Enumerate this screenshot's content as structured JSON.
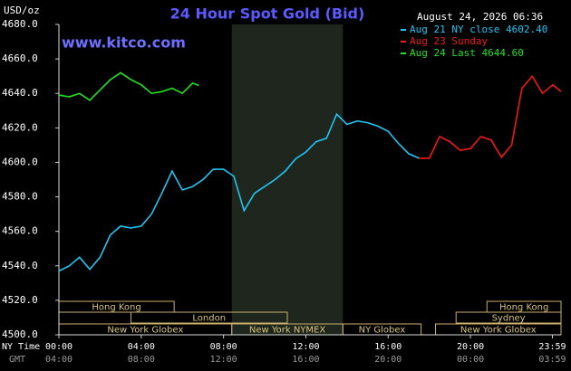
{
  "chart_data": {
    "type": "line",
    "title": "24 Hour Spot Gold (Bid)",
    "unit_label": "USD/oz",
    "watermark": "www.kitco.com",
    "timestamp": "August 24, 2026 06:36",
    "xlim": [
      0,
      24.4
    ],
    "ylim": [
      4500,
      4680
    ],
    "yticks": [
      {
        "value": 4500,
        "label": "4500.0"
      },
      {
        "value": 4520,
        "label": "4520.0"
      },
      {
        "value": 4540,
        "label": "4540.0"
      },
      {
        "value": 4560,
        "label": "4560.0"
      },
      {
        "value": 4580,
        "label": "4580.0"
      },
      {
        "value": 4600,
        "label": "4600.0"
      },
      {
        "value": 4620,
        "label": "4620.0"
      },
      {
        "value": 4640,
        "label": "4640.0"
      },
      {
        "value": 4660,
        "label": "4660.0"
      },
      {
        "value": 4680,
        "label": "4680.0"
      }
    ],
    "xticks": [
      {
        "value": 0,
        "label": "00:00"
      },
      {
        "value": 4,
        "label": "04:00"
      },
      {
        "value": 8,
        "label": "08:00"
      },
      {
        "value": 12,
        "label": "12:00"
      },
      {
        "value": 16,
        "label": "16:00"
      },
      {
        "value": 20,
        "label": "20:00"
      },
      {
        "value": 23.98,
        "label": "23:59"
      }
    ],
    "x_row_label": "NY Time",
    "x2_row_label": "GMT",
    "x2ticks": [
      "04:00",
      "08:00",
      "12:00",
      "16:00",
      "20:00",
      "00:00",
      "03:59"
    ],
    "series": [
      {
        "name": "Aug 21 NY close 4602.40",
        "color": "#22c4f2",
        "x": [
          0,
          0.5,
          1,
          1.5,
          2,
          2.5,
          3,
          3.5,
          4,
          4.5,
          5,
          5.5,
          6,
          6.5,
          7,
          7.5,
          8,
          8.5,
          9,
          9.5,
          10,
          10.5,
          11,
          11.5,
          12,
          12.5,
          13,
          13.5,
          14,
          14.5,
          15,
          15.5,
          16,
          16.5,
          17,
          17.5
        ],
        "values": [
          4537,
          4540,
          4545,
          4538,
          4545,
          4558,
          4563,
          4562,
          4563,
          4570,
          4582,
          4595,
          4584,
          4586,
          4590,
          4596,
          4596,
          4592,
          4572,
          4582,
          4586,
          4590,
          4595,
          4602,
          4606,
          4612,
          4614,
          4628,
          4622,
          4624,
          4623,
          4621,
          4618,
          4611,
          4605,
          4602.4
        ]
      },
      {
        "name": "Aug 23 Sunday",
        "color": "#f01818",
        "x": [
          17.5,
          18,
          18.5,
          19,
          19.5,
          20,
          20.5,
          21,
          21.5,
          22,
          22.5,
          23,
          23.5,
          24,
          24.4
        ],
        "values": [
          4602.4,
          4602.4,
          4615,
          4612,
          4607,
          4608,
          4615,
          4613,
          4603,
          4610,
          4643,
          4650,
          4640,
          4645,
          4641
        ]
      },
      {
        "name": "Aug 24 Last 4644.60",
        "color": "#22e022",
        "x": [
          0,
          0.5,
          1,
          1.5,
          2,
          2.5,
          3,
          3.5,
          4,
          4.5,
          5,
          5.5,
          6,
          6.5,
          6.8
        ],
        "values": [
          4639,
          4638,
          4640,
          4636,
          4642,
          4648,
          4652,
          4648,
          4645,
          4640,
          4641,
          4643,
          4640,
          4646,
          4644.6
        ]
      }
    ],
    "sessions": [
      {
        "label": "Hong Kong",
        "start": 0,
        "end": 5.6
      },
      {
        "label": "London",
        "start": 3.5,
        "end": 11.1
      },
      {
        "label": "New York Globex",
        "start": 0,
        "end": 8.4
      },
      {
        "label": "New York NYMEX",
        "start": 8.4,
        "end": 13.8
      },
      {
        "label": "NY Globex",
        "start": 13.8,
        "end": 17.6
      },
      {
        "label": "Hong Kong",
        "start": 20.8,
        "end": 24.4
      },
      {
        "label": "Sydney",
        "start": 19.3,
        "end": 24.4
      },
      {
        "label": "New York Globex",
        "start": 18.3,
        "end": 24.4
      }
    ]
  }
}
